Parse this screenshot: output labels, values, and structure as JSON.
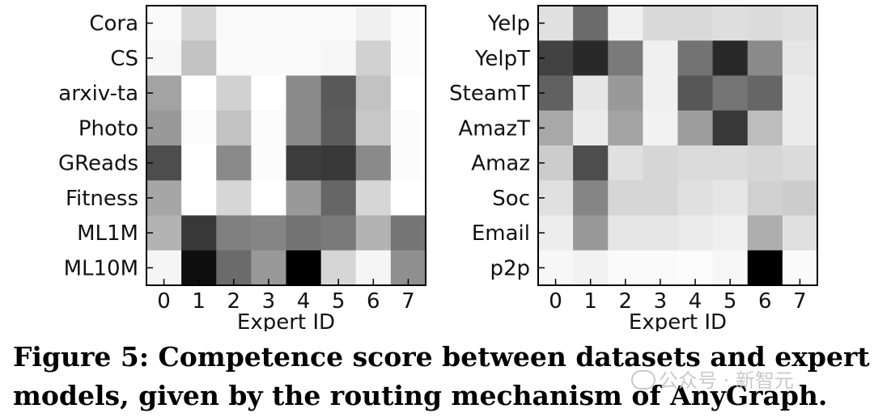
{
  "chart_data": [
    {
      "type": "heatmap",
      "xlabel": "Expert ID",
      "x_ticks": [
        "0",
        "1",
        "2",
        "3",
        "4",
        "5",
        "6",
        "7"
      ],
      "rows": [
        "Cora",
        "CS",
        "arxiv-ta",
        "Photo",
        "GReads",
        "Fitness",
        "ML1M",
        "ML10M"
      ],
      "colormap": "white-to-black (higher = darker)",
      "values": [
        [
          0.02,
          0.16,
          0.02,
          0.02,
          0.02,
          0.02,
          0.06,
          0.01
        ],
        [
          0.03,
          0.24,
          0.02,
          0.02,
          0.02,
          0.03,
          0.18,
          0.01
        ],
        [
          0.36,
          0.0,
          0.18,
          0.0,
          0.46,
          0.65,
          0.24,
          0.0
        ],
        [
          0.4,
          0.01,
          0.24,
          0.01,
          0.46,
          0.64,
          0.22,
          0.01
        ],
        [
          0.7,
          0.0,
          0.46,
          0.01,
          0.76,
          0.78,
          0.46,
          0.01
        ],
        [
          0.35,
          0.0,
          0.16,
          0.0,
          0.4,
          0.6,
          0.16,
          0.0
        ],
        [
          0.3,
          0.78,
          0.5,
          0.48,
          0.55,
          0.52,
          0.3,
          0.54
        ],
        [
          0.04,
          0.94,
          0.58,
          0.4,
          1.0,
          0.16,
          0.04,
          0.44
        ]
      ]
    },
    {
      "type": "heatmap",
      "xlabel": "Expert ID",
      "x_ticks": [
        "0",
        "1",
        "2",
        "3",
        "4",
        "5",
        "6",
        "7"
      ],
      "rows": [
        "Yelp",
        "YelpT",
        "SteamT",
        "AmazT",
        "Amaz",
        "Soc",
        "Email",
        "p2p"
      ],
      "colormap": "white-to-black (higher = darker)",
      "values": [
        [
          0.12,
          0.58,
          0.06,
          0.15,
          0.15,
          0.13,
          0.14,
          0.12
        ],
        [
          0.74,
          0.84,
          0.52,
          0.06,
          0.55,
          0.84,
          0.46,
          0.1
        ],
        [
          0.62,
          0.1,
          0.4,
          0.06,
          0.66,
          0.54,
          0.6,
          0.08
        ],
        [
          0.34,
          0.08,
          0.36,
          0.05,
          0.38,
          0.78,
          0.26,
          0.08
        ],
        [
          0.2,
          0.7,
          0.12,
          0.16,
          0.14,
          0.14,
          0.16,
          0.14
        ],
        [
          0.12,
          0.48,
          0.16,
          0.16,
          0.12,
          0.1,
          0.18,
          0.2
        ],
        [
          0.07,
          0.4,
          0.1,
          0.1,
          0.08,
          0.06,
          0.32,
          0.12
        ],
        [
          0.03,
          0.05,
          0.02,
          0.02,
          0.01,
          0.03,
          1.0,
          0.02
        ]
      ]
    }
  ],
  "caption": "Figure 5: Competence score between datasets and expert models, given by the routing mechanism of AnyGraph.",
  "watermark": "公众号 · 新智元"
}
